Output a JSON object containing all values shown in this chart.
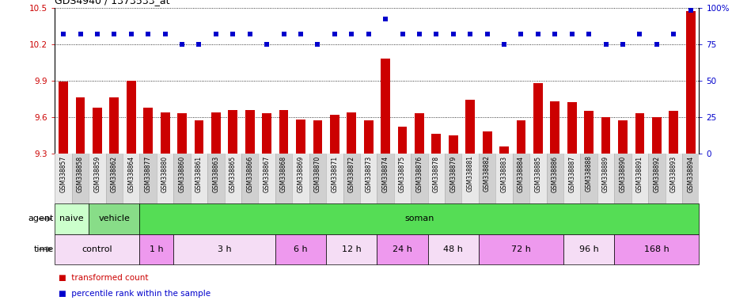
{
  "title": "GDS4940 / 1373533_at",
  "samples": [
    "GSM338857",
    "GSM338858",
    "GSM338859",
    "GSM338862",
    "GSM338864",
    "GSM338877",
    "GSM338880",
    "GSM338860",
    "GSM338861",
    "GSM338863",
    "GSM338865",
    "GSM338866",
    "GSM338867",
    "GSM338868",
    "GSM338869",
    "GSM338870",
    "GSM338871",
    "GSM338872",
    "GSM338873",
    "GSM338874",
    "GSM338875",
    "GSM338876",
    "GSM338878",
    "GSM338879",
    "GSM338881",
    "GSM338882",
    "GSM338883",
    "GSM338884",
    "GSM338885",
    "GSM338886",
    "GSM338887",
    "GSM338888",
    "GSM338889",
    "GSM338890",
    "GSM338891",
    "GSM338892",
    "GSM338893",
    "GSM338894"
  ],
  "bar_values": [
    9.89,
    9.76,
    9.68,
    9.76,
    9.9,
    9.68,
    9.64,
    9.63,
    9.57,
    9.64,
    9.66,
    9.66,
    9.63,
    9.66,
    9.58,
    9.57,
    9.62,
    9.64,
    9.57,
    10.08,
    9.52,
    9.63,
    9.46,
    9.45,
    9.74,
    9.48,
    9.36,
    9.57,
    9.88,
    9.73,
    9.72,
    9.65,
    9.6,
    9.57,
    9.63,
    9.6,
    9.65,
    10.47
  ],
  "percentile_values": [
    82,
    82,
    82,
    82,
    82,
    82,
    82,
    75,
    75,
    82,
    82,
    82,
    75,
    82,
    82,
    75,
    82,
    82,
    82,
    92,
    82,
    82,
    82,
    82,
    82,
    82,
    75,
    82,
    82,
    82,
    82,
    82,
    75,
    75,
    82,
    75,
    82,
    98
  ],
  "bar_color": "#cc0000",
  "dot_color": "#0000cc",
  "ylim_left": [
    9.3,
    10.5
  ],
  "ylim_right": [
    0,
    100
  ],
  "yticks_left": [
    9.3,
    9.6,
    9.9,
    10.2,
    10.5
  ],
  "yticks_right": [
    0,
    25,
    50,
    75,
    100
  ],
  "ytick_right_labels": [
    "0",
    "25",
    "50",
    "75",
    "100%"
  ],
  "agent_groups": [
    {
      "label": "naive",
      "start": 0,
      "end": 2,
      "color": "#ccffcc"
    },
    {
      "label": "vehicle",
      "start": 2,
      "end": 5,
      "color": "#88dd88"
    },
    {
      "label": "soman",
      "start": 5,
      "end": 38,
      "color": "#55dd55"
    }
  ],
  "time_groups": [
    {
      "label": "control",
      "start": 0,
      "end": 5,
      "color": "#f5ddf5"
    },
    {
      "label": "1 h",
      "start": 5,
      "end": 7,
      "color": "#ee99ee"
    },
    {
      "label": "3 h",
      "start": 7,
      "end": 13,
      "color": "#f5ddf5"
    },
    {
      "label": "6 h",
      "start": 13,
      "end": 16,
      "color": "#ee99ee"
    },
    {
      "label": "12 h",
      "start": 16,
      "end": 19,
      "color": "#f5ddf5"
    },
    {
      "label": "24 h",
      "start": 19,
      "end": 22,
      "color": "#ee99ee"
    },
    {
      "label": "48 h",
      "start": 22,
      "end": 25,
      "color": "#f5ddf5"
    },
    {
      "label": "72 h",
      "start": 25,
      "end": 30,
      "color": "#ee99ee"
    },
    {
      "label": "96 h",
      "start": 30,
      "end": 33,
      "color": "#f5ddf5"
    },
    {
      "label": "168 h",
      "start": 33,
      "end": 38,
      "color": "#ee99ee"
    }
  ],
  "xtick_bg_colors": [
    "#e8e8e8",
    "#d0d0d0"
  ],
  "background_color": "#ffffff",
  "tick_label_color_left": "#cc0000",
  "tick_label_color_right": "#0000cc",
  "legend_items": [
    {
      "color": "#cc0000",
      "label": "transformed count"
    },
    {
      "color": "#0000cc",
      "label": "percentile rank within the sample"
    }
  ]
}
